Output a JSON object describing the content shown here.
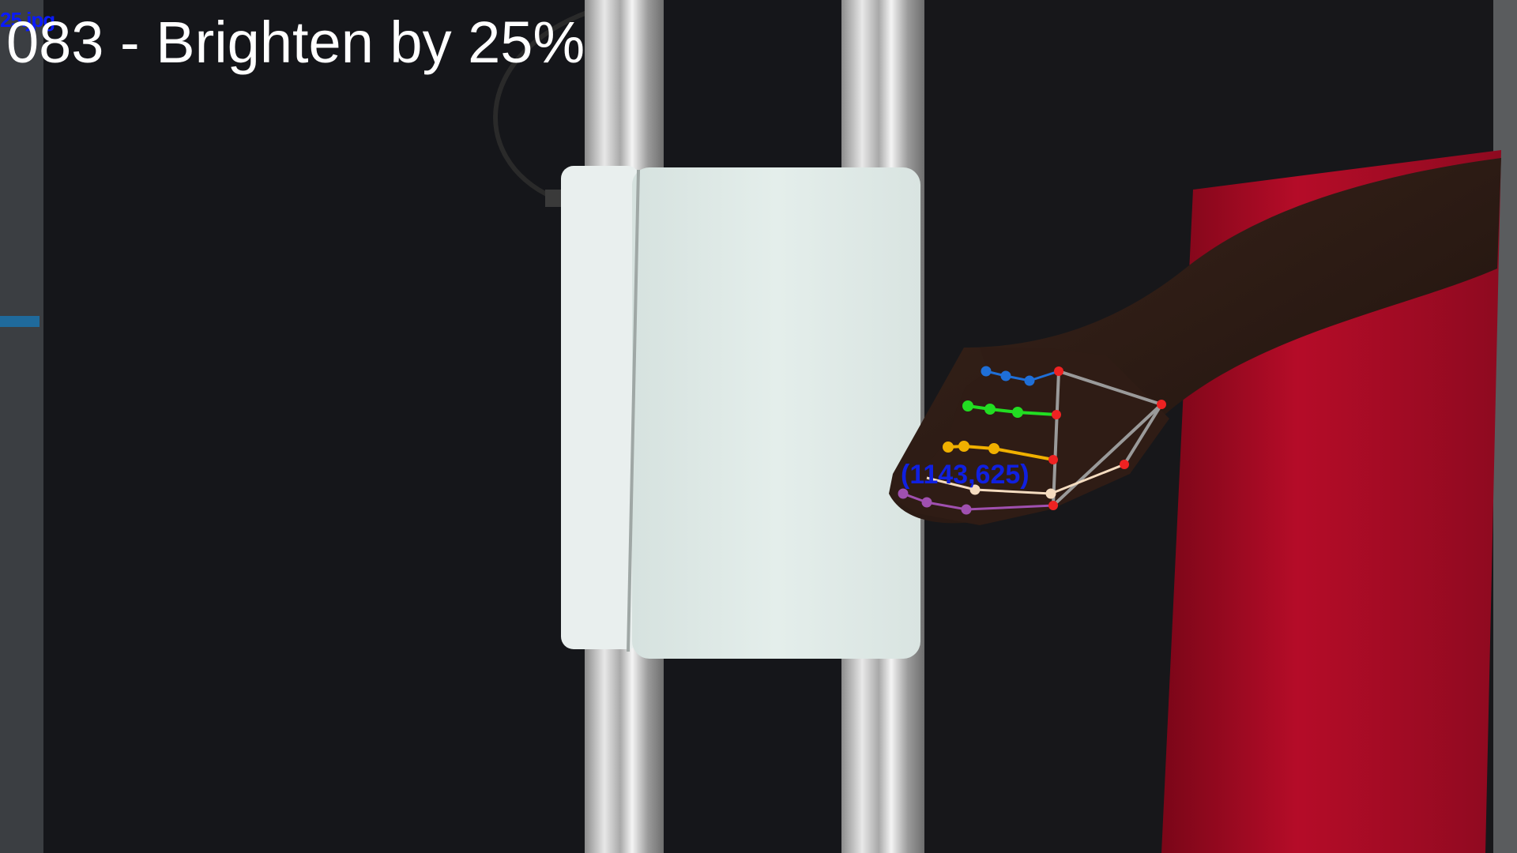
{
  "overlay": {
    "filename": "25.jpg",
    "title": "083 - Brighten by 25%",
    "coordinate_label": "(1143,625)"
  },
  "colors": {
    "background": "#15161a",
    "panel": "#dfe9e6",
    "sleeve": "#c8102e",
    "skin": "#2c1a14",
    "thumb": "#1f6fd8",
    "index": "#22dd22",
    "middle": "#f0b000",
    "ring": "#f5dcc0",
    "pinky": "#a050b0",
    "palm": "#9a9a9a",
    "joint": "#ee2222"
  },
  "icons": [
    "hand-landmark-skeleton"
  ]
}
